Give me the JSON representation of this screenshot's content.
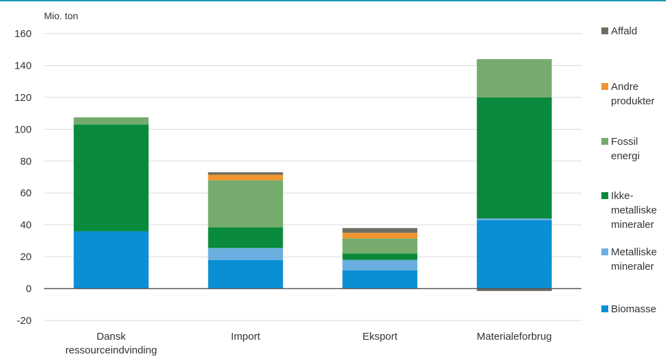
{
  "chart_data": {
    "type": "bar",
    "stacked": true,
    "ylabel": "Mio. ton",
    "ylim": [
      -20,
      160
    ],
    "yticks": [
      -20,
      0,
      20,
      40,
      60,
      80,
      100,
      120,
      140,
      160
    ],
    "grid": true,
    "legend_position": "right",
    "categories": [
      [
        "Dansk",
        "ressourceindvinding"
      ],
      [
        "Import"
      ],
      [
        "Eksport"
      ],
      [
        "Materialeforbrug"
      ]
    ],
    "series": [
      {
        "name": "Biomasse",
        "color": "#0a8ed4",
        "values": [
          36,
          18,
          11.5,
          43
        ]
      },
      {
        "name": "Metalliske mineraler",
        "color": "#6aafe0",
        "values": [
          0,
          7.5,
          6.5,
          1
        ]
      },
      {
        "name": "Ikke-metalliske mineraler",
        "color": "#0a8a3c",
        "values": [
          67,
          13,
          4,
          76
        ]
      },
      {
        "name": "Fossil energi",
        "color": "#75ab6c",
        "values": [
          4.5,
          29.5,
          9.5,
          24
        ]
      },
      {
        "name": "Andre produkter",
        "color": "#f0952f",
        "values": [
          0,
          3.5,
          3.5,
          0
        ]
      },
      {
        "name": "Affald",
        "color": "#6e6e62",
        "values": [
          0,
          1.5,
          3,
          -1.5
        ]
      }
    ],
    "legend": [
      {
        "lines": [
          "Affald"
        ],
        "color": "#6e6e62"
      },
      {
        "lines": [
          "Andre",
          "produkter"
        ],
        "color": "#f0952f"
      },
      {
        "lines": [
          "Fossil",
          "energi"
        ],
        "color": "#75ab6c"
      },
      {
        "lines": [
          "Ikke-",
          "metalliske",
          "mineraler"
        ],
        "color": "#0a8a3c"
      },
      {
        "lines": [
          "Metalliske",
          "mineraler"
        ],
        "color": "#6aafe0"
      },
      {
        "lines": [
          "Biomasse"
        ],
        "color": "#0a8ed4"
      }
    ]
  }
}
